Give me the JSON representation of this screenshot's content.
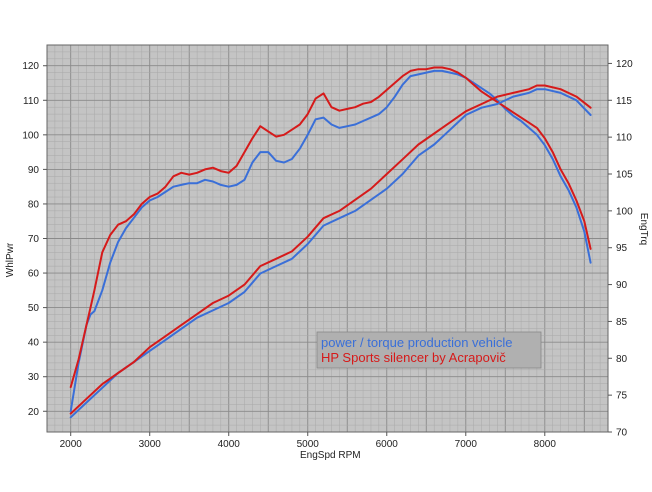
{
  "chart_data": {
    "type": "line",
    "xlabel": "EngSpd  RPM",
    "ylabel_left": "WhlPwr",
    "ylabel_right": "EngTrq",
    "xlim": [
      1700,
      8800
    ],
    "ylim_left": [
      14,
      126
    ],
    "ylim_right": [
      70,
      122.5
    ],
    "x_ticks": [
      2000,
      3000,
      4000,
      5000,
      6000,
      7000,
      8000
    ],
    "y_ticks_left": [
      20,
      30,
      40,
      50,
      60,
      70,
      80,
      90,
      100,
      110,
      120
    ],
    "y_ticks_right": [
      70,
      75,
      80,
      85,
      90,
      95,
      100,
      105,
      110,
      115,
      120
    ],
    "grid": true,
    "legend": {
      "placement": "bottom-right",
      "entries": [
        {
          "label": "power / torque production vehicle",
          "color": "#3a6fd8"
        },
        {
          "label": "HP Sports silencer by Acrapovič",
          "color": "#d61a1a"
        }
      ]
    },
    "series": [
      {
        "group": "production",
        "quantity": "power",
        "axis": "left",
        "color": "#3a6fd8",
        "x": [
          2000,
          2100,
          2200,
          2250,
          2300,
          2400,
          2500,
          2600,
          2700,
          2800,
          2900,
          3000,
          3100,
          3200,
          3300,
          3400,
          3500,
          3600,
          3700,
          3800,
          3900,
          4000,
          4100,
          4200,
          4300,
          4400,
          4500,
          4600,
          4700,
          4800,
          4900,
          5000,
          5100,
          5200,
          5300,
          5400,
          5500,
          5600,
          5700,
          5800,
          5900,
          6000,
          6100,
          6200,
          6300,
          6400,
          6500,
          6600,
          6700,
          6800,
          6900,
          7000,
          7100,
          7200,
          7300,
          7400,
          7500,
          7600,
          7700,
          7800,
          7900,
          8000,
          8100,
          8200,
          8300,
          8400,
          8500,
          8580
        ],
        "y": [
          20,
          34,
          45,
          48,
          49,
          55,
          63,
          69,
          73,
          76,
          79,
          81,
          82,
          83.5,
          85,
          85.5,
          86,
          86,
          87,
          86.5,
          85.5,
          85,
          85.5,
          87,
          92,
          95,
          95,
          92.5,
          92,
          93,
          96,
          100,
          104.5,
          105,
          103,
          102,
          102.5,
          103,
          104,
          105,
          106,
          108,
          111,
          114.5,
          117,
          117.5,
          118,
          118.5,
          118.5,
          118,
          117.5,
          116.5,
          115,
          113.5,
          112,
          110,
          107.5,
          105.5,
          104,
          102,
          100,
          97,
          93,
          88,
          84,
          79,
          72,
          63
        ]
      },
      {
        "group": "acrapovic",
        "quantity": "power",
        "axis": "left",
        "color": "#d61a1a",
        "x": [
          2000,
          2100,
          2200,
          2250,
          2300,
          2400,
          2500,
          2600,
          2700,
          2800,
          2900,
          3000,
          3100,
          3200,
          3300,
          3400,
          3500,
          3600,
          3700,
          3800,
          3900,
          4000,
          4100,
          4200,
          4300,
          4400,
          4500,
          4600,
          4700,
          4800,
          4900,
          5000,
          5100,
          5200,
          5300,
          5400,
          5500,
          5600,
          5700,
          5800,
          5900,
          6000,
          6100,
          6200,
          6300,
          6400,
          6500,
          6600,
          6700,
          6800,
          6900,
          7000,
          7100,
          7200,
          7300,
          7400,
          7500,
          7600,
          7700,
          7800,
          7900,
          8000,
          8100,
          8200,
          8300,
          8400,
          8500,
          8580
        ],
        "y": [
          27,
          35,
          45,
          50,
          55,
          66,
          71,
          74,
          75,
          77,
          80,
          82,
          83,
          85,
          88,
          89,
          88.5,
          89,
          90,
          90.5,
          89.5,
          89,
          91,
          95,
          99,
          102.5,
          101,
          99.5,
          100,
          101.5,
          103,
          106,
          110.5,
          112,
          108,
          107,
          107.5,
          108,
          109,
          109.5,
          111,
          113,
          115,
          117,
          118.5,
          119,
          119,
          119.5,
          119.5,
          119,
          118,
          116.5,
          114.5,
          112.5,
          111,
          109.5,
          108,
          106.5,
          105,
          103.5,
          102,
          99,
          95,
          90,
          86,
          81,
          75,
          67
        ]
      },
      {
        "group": "production",
        "quantity": "torque",
        "axis": "right",
        "color": "#3a6fd8",
        "x": [
          2000,
          2200,
          2400,
          2600,
          2800,
          3000,
          3200,
          3400,
          3600,
          3800,
          4000,
          4200,
          4400,
          4600,
          4800,
          5000,
          5200,
          5400,
          5600,
          5800,
          6000,
          6200,
          6400,
          6600,
          6800,
          7000,
          7200,
          7400,
          7600,
          7800,
          7900,
          8000,
          8200,
          8400,
          8580
        ],
        "y": [
          72,
          74,
          76,
          78,
          79.5,
          81,
          82.5,
          84,
          85.5,
          86.5,
          87.5,
          89,
          91.5,
          92.5,
          93.5,
          95.5,
          98,
          99,
          100,
          101.5,
          103,
          105,
          107.5,
          109,
          111,
          113,
          114,
          114.5,
          115.5,
          116,
          116.5,
          116.5,
          116,
          115,
          113
        ]
      },
      {
        "group": "acrapovic",
        "quantity": "torque",
        "axis": "right",
        "color": "#d61a1a",
        "x": [
          2000,
          2200,
          2400,
          2600,
          2800,
          3000,
          3200,
          3400,
          3600,
          3800,
          4000,
          4200,
          4400,
          4600,
          4800,
          5000,
          5200,
          5400,
          5600,
          5800,
          6000,
          6200,
          6400,
          6600,
          6800,
          7000,
          7200,
          7400,
          7600,
          7800,
          7900,
          8000,
          8200,
          8400,
          8580
        ],
        "y": [
          72.5,
          74.5,
          76.5,
          78,
          79.5,
          81.5,
          83,
          84.5,
          86,
          87.5,
          88.5,
          90,
          92.5,
          93.5,
          94.5,
          96.5,
          99,
          100,
          101.5,
          103,
          105,
          107,
          109,
          110.5,
          112,
          113.5,
          114.5,
          115.5,
          116,
          116.5,
          117,
          117,
          116.5,
          115.5,
          114
        ]
      }
    ]
  }
}
